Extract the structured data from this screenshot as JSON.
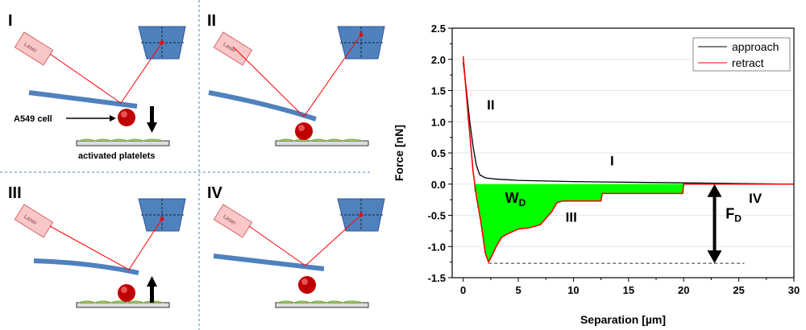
{
  "panels": [
    {
      "label": "I",
      "laser": "Laser",
      "cell_label": "A549 cell",
      "substrate_label": "activated platelets"
    },
    {
      "label": "II",
      "laser": "Laser"
    },
    {
      "label": "III",
      "laser": "Laser"
    },
    {
      "label": "IV",
      "laser": "Laser"
    }
  ],
  "colors": {
    "cantilever": "#4f81bd",
    "detector": "#4f81bd",
    "laser": "#f8c8c8",
    "beam": "#ff0000",
    "cell": "#c00000",
    "platelets": "#9bd45a",
    "fill": "#00ff00",
    "approach": "#000000",
    "retract": "#ff0000"
  },
  "chart_data": {
    "type": "line",
    "xlabel": "Separation [µm]",
    "ylabel": "Force [nN]",
    "xlim": [
      -1,
      30
    ],
    "ylim": [
      -1.5,
      2.5
    ],
    "xticks": [
      0,
      5,
      10,
      15,
      20,
      25,
      30
    ],
    "yticks": [
      -1.5,
      -1.0,
      -0.5,
      0.0,
      0.5,
      1.0,
      1.5,
      2.0,
      2.5
    ],
    "ytick_labels": [
      "-1.5",
      "-1.0",
      "-0.5",
      "0.0",
      "0.5",
      "1.0",
      "1.5",
      "2.0",
      "2.5"
    ],
    "grid": "horizontal",
    "legend": {
      "placement": "top-right"
    },
    "series": [
      {
        "name": "approach",
        "x": [
          0,
          0.3,
          0.6,
          0.9,
          1.2,
          1.5,
          2,
          3,
          5,
          10,
          15,
          20,
          25,
          30
        ],
        "y": [
          1.95,
          1.5,
          1.0,
          0.6,
          0.3,
          0.15,
          0.1,
          0.08,
          0.06,
          0.04,
          0.03,
          0.02,
          0.01,
          0.0
        ]
      },
      {
        "name": "retract",
        "x": [
          0,
          0.5,
          0.9,
          1.2,
          1.6,
          2.0,
          2.3,
          2.6,
          3.0,
          3.5,
          4,
          5,
          6,
          7,
          7.5,
          8,
          8.5,
          9,
          12.5,
          12.6,
          19.9,
          20,
          30
        ],
        "y": [
          2.05,
          1.0,
          0.2,
          -0.2,
          -0.6,
          -1.1,
          -1.25,
          -1.15,
          -1.0,
          -0.85,
          -0.8,
          -0.72,
          -0.7,
          -0.65,
          -0.55,
          -0.45,
          -0.3,
          -0.27,
          -0.27,
          -0.15,
          -0.15,
          0,
          0
        ]
      }
    ],
    "annotations": [
      {
        "text": "II",
        "x": 2.5,
        "y": 1.2
      },
      {
        "text": "I",
        "x": 13.5,
        "y": 0.3
      },
      {
        "text": "III",
        "x": 9.8,
        "y": -0.6
      },
      {
        "text": "IV",
        "x": 26.5,
        "y": -0.3
      }
    ],
    "work_label": {
      "main": "W",
      "sub": "D",
      "x": 3.8,
      "y": -0.3
    },
    "force_label": {
      "main": "F",
      "sub": "D",
      "x": 23.8,
      "y": -0.55
    },
    "max_force": -1.27,
    "dashed_range": [
      2.3,
      25.5
    ],
    "arrow_x": 22.8,
    "fill_range": [
      1.0,
      20
    ]
  }
}
